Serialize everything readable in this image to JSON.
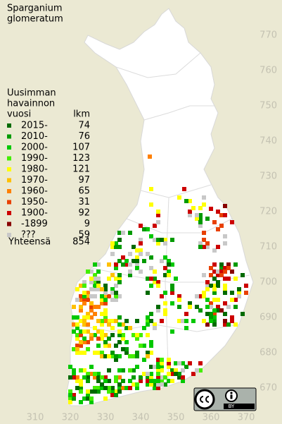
{
  "chart_data": {
    "type": "map",
    "title": [
      "Sparganium",
      "glomeratum"
    ],
    "legend_title": [
      "Uusimman",
      "havainnon",
      "vuosi"
    ],
    "count_header": "lkm",
    "legend": [
      {
        "name": "2015-",
        "value": 74,
        "color": "#006a00"
      },
      {
        "name": "2010-",
        "value": 76,
        "color": "#009a00"
      },
      {
        "name": "2000-",
        "value": 107,
        "color": "#00c800"
      },
      {
        "name": "1990-",
        "value": 123,
        "color": "#44ee00"
      },
      {
        "name": "1980-",
        "value": 121,
        "color": "#ffff00"
      },
      {
        "name": "1970-",
        "value": 97,
        "color": "#ffc000"
      },
      {
        "name": "1960-",
        "value": 65,
        "color": "#ff8000"
      },
      {
        "name": "1950-",
        "value": 31,
        "color": "#e84000"
      },
      {
        "name": "1900-",
        "value": 92,
        "color": "#cc0000"
      },
      {
        "name": "-1899",
        "value": 9,
        "color": "#880000"
      },
      {
        "name": "???",
        "value": 59,
        "color": "#c8c8c8"
      }
    ],
    "total": {
      "label": "Yhteensä",
      "value": 854
    },
    "xlim": [
      300,
      380
    ],
    "ylim": [
      660,
      780
    ],
    "xticks": [
      310,
      320,
      330,
      340,
      350,
      360,
      370
    ],
    "yticks": [
      670,
      680,
      690,
      700,
      710,
      720,
      730,
      740,
      750,
      760,
      770
    ],
    "license": "BY"
  }
}
